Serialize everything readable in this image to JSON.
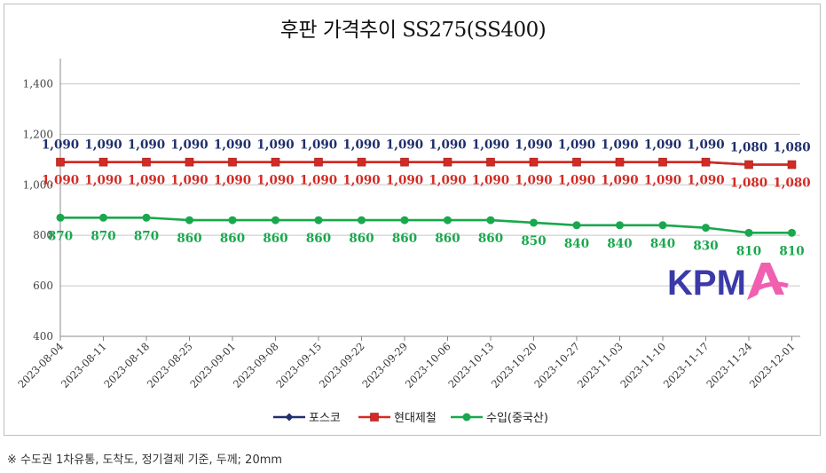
{
  "footnote": "※ 수도권 1차유통, 도착도, 정기결제 기준, 두께; 20mm",
  "logo_text": "KPMA",
  "colors": {
    "posco": "#1f2f6b",
    "hyundai": "#d42a24",
    "import": "#19a84d",
    "grid": "#c8c8c8",
    "logo_blue": "#3b3aa8",
    "logo_pink": "#f05fb0"
  },
  "chart_data": {
    "type": "line",
    "title": "후판 가격추이 SS275(SS400)",
    "x": [
      "2023-08-04",
      "2023-08-11",
      "2023-08-18",
      "2023-08-25",
      "2023-09-01",
      "2023-09-08",
      "2023-09-15",
      "2023-09-22",
      "2023-09-29",
      "2023-10-06",
      "2023-10-13",
      "2023-10-20",
      "2023-10-27",
      "2023-11-03",
      "2023-11-10",
      "2023-11-17",
      "2023-11-24",
      "2023-12-01"
    ],
    "ylim": [
      400,
      1500
    ],
    "yticks": [
      400,
      600,
      800,
      1000,
      1200,
      1400
    ],
    "ytick_labels": [
      "400",
      "600",
      "800",
      "1,000",
      "1,200",
      "1,400"
    ],
    "grid": true,
    "legend_position": "bottom",
    "series": [
      {
        "name": "포스코",
        "marker": "diamond",
        "values": [
          1090,
          1090,
          1090,
          1090,
          1090,
          1090,
          1090,
          1090,
          1090,
          1090,
          1090,
          1090,
          1090,
          1090,
          1090,
          1090,
          1080,
          1080
        ],
        "labels": [
          "1,090",
          "1,090",
          "1,090",
          "1,090",
          "1,090",
          "1,090",
          "1,090",
          "1,090",
          "1,090",
          "1,090",
          "1,090",
          "1,090",
          "1,090",
          "1,090",
          "1,090",
          "1,090",
          "1,080",
          "1,080"
        ]
      },
      {
        "name": "현대제철",
        "marker": "square",
        "values": [
          1090,
          1090,
          1090,
          1090,
          1090,
          1090,
          1090,
          1090,
          1090,
          1090,
          1090,
          1090,
          1090,
          1090,
          1090,
          1090,
          1080,
          1080
        ],
        "labels": [
          "1,090",
          "1,090",
          "1,090",
          "1,090",
          "1,090",
          "1,090",
          "1,090",
          "1,090",
          "1,090",
          "1,090",
          "1,090",
          "1,090",
          "1,090",
          "1,090",
          "1,090",
          "1,090",
          "1,080",
          "1,080"
        ]
      },
      {
        "name": "수입(중국산)",
        "marker": "circle",
        "values": [
          870,
          870,
          870,
          860,
          860,
          860,
          860,
          860,
          860,
          860,
          860,
          850,
          840,
          840,
          840,
          830,
          810,
          810
        ],
        "labels": [
          "870",
          "870",
          "870",
          "860",
          "860",
          "860",
          "860",
          "860",
          "860",
          "860",
          "860",
          "850",
          "840",
          "840",
          "840",
          "830",
          "810",
          "810"
        ]
      }
    ]
  }
}
